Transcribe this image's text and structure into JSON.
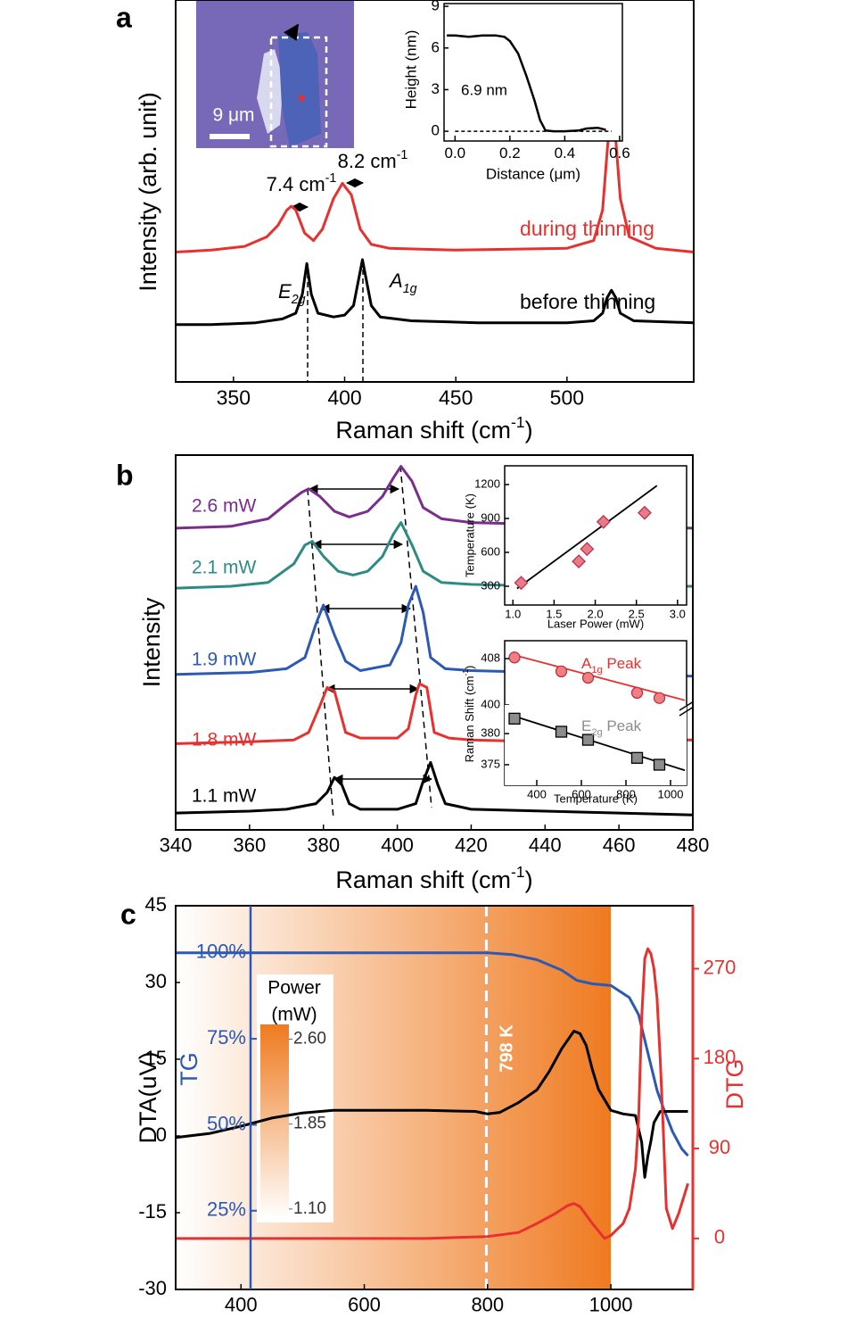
{
  "chart_data": [
    {
      "type": "line",
      "panel": "a",
      "xlabel": "Raman shift (cm-1)",
      "ylabel": "Intensity (arb. unit)",
      "xlim": [
        324,
        557
      ],
      "xticks": [
        350,
        400,
        450,
        500
      ],
      "ylim": [
        0,
        10
      ],
      "image_scalebar_label": "9 μm",
      "annotations": [
        "7.4 cm-1",
        "8.2 cm-1",
        "E2g",
        "A1g"
      ],
      "series": [
        {
          "name": "during thinning",
          "color": "#e8312f",
          "x": [
            324,
            340,
            355,
            365,
            370,
            374,
            376,
            378,
            382,
            386,
            390,
            395,
            399,
            403,
            407,
            412,
            420,
            450,
            500,
            512,
            516,
            518,
            520,
            522,
            524,
            528,
            540,
            557
          ],
          "values": [
            3.4,
            3.45,
            3.55,
            3.8,
            4.1,
            4.5,
            4.6,
            4.5,
            3.9,
            3.7,
            4.0,
            4.8,
            5.2,
            4.9,
            4.0,
            3.6,
            3.5,
            3.45,
            3.5,
            3.7,
            4.5,
            6.0,
            7.4,
            6.3,
            4.8,
            3.8,
            3.5,
            3.4
          ]
        },
        {
          "name": "before thinning",
          "color": "#000000",
          "x": [
            324,
            340,
            360,
            372,
            378,
            381,
            383,
            385,
            388,
            395,
            400,
            404,
            406,
            408,
            410,
            412,
            416,
            430,
            460,
            500,
            512,
            516,
            518,
            520,
            522,
            524,
            530,
            557
          ],
          "values": [
            1.5,
            1.5,
            1.55,
            1.65,
            1.8,
            2.3,
            3.1,
            2.3,
            1.8,
            1.7,
            1.75,
            2.0,
            2.6,
            3.2,
            2.6,
            2.0,
            1.7,
            1.6,
            1.55,
            1.55,
            1.6,
            1.8,
            2.2,
            2.4,
            2.2,
            1.8,
            1.6,
            1.55
          ]
        }
      ]
    },
    {
      "type": "line",
      "xlabel": "Distance (μm)",
      "ylabel": "Height (nm)",
      "xlim": [
        -0.04,
        0.61
      ],
      "xticks": [
        {
          "value": 0,
          "label": "0.0"
        },
        {
          "value": 0.2,
          "label": "0.2"
        },
        {
          "value": 0.4,
          "label": "0.4"
        },
        {
          "value": 0.6,
          "label": "0.6"
        }
      ],
      "ylim": [
        -0.7,
        9.2
      ],
      "yticks": [
        0,
        3,
        6,
        9
      ],
      "annotations": [
        "6.9 nm"
      ],
      "series": [
        {
          "color": "#000000",
          "x": [
            -0.03,
            0,
            0.05,
            0.1,
            0.15,
            0.18,
            0.2,
            0.23,
            0.26,
            0.29,
            0.31,
            0.33,
            0.36,
            0.4,
            0.45,
            0.48,
            0.52,
            0.55
          ],
          "values": [
            6.9,
            6.9,
            6.8,
            6.9,
            6.9,
            6.8,
            6.5,
            5.6,
            4.0,
            2.2,
            0.8,
            0.05,
            0,
            0,
            0.05,
            0.2,
            0.25,
            0.1
          ]
        }
      ]
    },
    {
      "type": "line",
      "panel": "b",
      "xlabel": "Raman shift (cm-1)",
      "ylabel": "Intensity",
      "xlim": [
        340,
        480
      ],
      "xticks": [
        340,
        360,
        380,
        400,
        420,
        440,
        460,
        480
      ],
      "ylim": [
        0,
        10
      ],
      "series": [
        {
          "name": "1.1 mW",
          "color": "#000000",
          "x": [
            340,
            360,
            370,
            378,
            381,
            383,
            385,
            387,
            390,
            400,
            405,
            407,
            409,
            411,
            413,
            420,
            440,
            460,
            480
          ],
          "values": [
            0.45,
            0.5,
            0.55,
            0.7,
            1.0,
            1.4,
            1.2,
            0.7,
            0.55,
            0.55,
            0.7,
            1.3,
            1.8,
            1.2,
            0.7,
            0.55,
            0.5,
            0.45,
            0.4
          ]
        },
        {
          "name": "1.8 mW",
          "color": "#e8312f",
          "x": [
            340,
            360,
            372,
            376,
            379,
            381,
            383,
            386,
            390,
            400,
            403,
            405,
            406,
            408,
            410,
            414,
            420,
            440,
            460,
            480
          ],
          "values": [
            2.3,
            2.35,
            2.4,
            2.6,
            3.3,
            3.8,
            3.7,
            2.6,
            2.45,
            2.45,
            2.7,
            3.6,
            3.9,
            3.8,
            2.6,
            2.45,
            2.4,
            2.35,
            2.4,
            2.4
          ]
        },
        {
          "name": "1.9 mW",
          "color": "#2b59b5",
          "x": [
            340,
            360,
            370,
            375,
            378,
            380,
            383,
            386,
            390,
            398,
            401,
            403,
            405,
            407,
            409,
            413,
            420,
            440,
            460,
            480
          ],
          "values": [
            4.15,
            4.2,
            4.3,
            4.6,
            5.5,
            6.0,
            5.2,
            4.5,
            4.25,
            4.4,
            5.0,
            6.0,
            6.5,
            5.8,
            4.6,
            4.3,
            4.25,
            4.2,
            4.15,
            4.1
          ]
        },
        {
          "name": "2.1 mW",
          "color": "#2e8b84",
          "x": [
            340,
            355,
            365,
            372,
            375,
            377,
            380,
            384,
            388,
            392,
            396,
            399,
            401,
            404,
            407,
            412,
            420,
            440,
            460,
            480
          ],
          "values": [
            6.45,
            6.5,
            6.6,
            7.1,
            7.6,
            7.7,
            7.3,
            6.9,
            6.8,
            6.9,
            7.3,
            7.9,
            8.2,
            7.6,
            6.9,
            6.6,
            6.55,
            6.5,
            6.5,
            6.5
          ]
        },
        {
          "name": "2.6 mW",
          "color": "#7b2d8e",
          "x": [
            340,
            355,
            365,
            370,
            374,
            376,
            379,
            383,
            387,
            392,
            396,
            399,
            401,
            404,
            407,
            412,
            420,
            440,
            460,
            480
          ],
          "values": [
            8.05,
            8.1,
            8.3,
            8.7,
            9.0,
            9.1,
            8.9,
            8.5,
            8.35,
            8.5,
            8.9,
            9.4,
            9.7,
            9.3,
            8.6,
            8.3,
            8.2,
            8.15,
            8.1,
            8.05
          ]
        }
      ]
    },
    {
      "type": "scatter",
      "marker": "diamond",
      "xlabel": "Laser Power (mW)",
      "ylabel": "Temperature (K)",
      "xlim": [
        0.9,
        3.11
      ],
      "xticks": [
        {
          "value": 1,
          "label": "1.0"
        },
        {
          "value": 1.5,
          "label": "1.5"
        },
        {
          "value": 2,
          "label": "2.0"
        },
        {
          "value": 2.5,
          "label": "2.5"
        },
        {
          "value": 3,
          "label": "3.0"
        }
      ],
      "ylim": [
        134,
        1366
      ],
      "yticks": [
        300,
        600,
        900,
        1200
      ],
      "series": [
        {
          "color": "#e87a8a",
          "x": [
            1.1,
            1.8,
            1.9,
            2.1,
            2.6
          ],
          "values": [
            330,
            520,
            630,
            870,
            950
          ],
          "fit": {
            "x": [
              1.05,
              2.75
            ],
            "values": [
              280,
              1190
            ]
          }
        }
      ]
    },
    {
      "type": "scatter",
      "marker": "circle",
      "ylabel": "Raman Shift (cm-1)",
      "xlim": [
        256,
        1072
      ],
      "ylim": [
        400,
        411.1
      ],
      "yticks": [
        400,
        408
      ],
      "series": [
        {
          "name": "A1g Peak",
          "color": "#f08080",
          "x": [
            300,
            510,
            630,
            850,
            950
          ],
          "values": [
            408.2,
            405.8,
            404.7,
            402.1,
            401.2
          ],
          "fit": {
            "x": [
              280,
              1064
            ],
            "values": [
              408.8,
              400.8
            ]
          }
        }
      ]
    },
    {
      "type": "scatter",
      "marker": "square",
      "xlabel": "Temperature (K)",
      "xlim": [
        256,
        1072
      ],
      "xticks": [
        400,
        600,
        800,
        1000
      ],
      "ylim": [
        371.7,
        384.6
      ],
      "yticks": [
        375,
        380
      ],
      "series": [
        {
          "name": "E2g Peak",
          "color": "#8c8c8c",
          "x": [
            300,
            510,
            630,
            850,
            950
          ],
          "values": [
            382.4,
            380.3,
            379,
            376.1,
            375
          ],
          "fit": {
            "x": [
              290,
              1064
            ],
            "values": [
              382.9,
              374.1
            ]
          }
        }
      ]
    },
    {
      "type": "line",
      "panel": "c",
      "ylabel": "DTA(uV)",
      "y2label": "DTG",
      "tglabel": "TG",
      "xlim": [
        294,
        1133
      ],
      "xticks": [
        400,
        600,
        800,
        1000
      ],
      "ylim": [
        -30,
        45
      ],
      "yticks": [
        -30,
        -15,
        0,
        15,
        30,
        45
      ],
      "y2lim": [
        -51,
        333
      ],
      "y2ticks": [
        0,
        90,
        180,
        270
      ],
      "y2color": "#e8312f",
      "tglim": [
        2.1,
        113.7
      ],
      "tgticks": [
        {
          "value": 25,
          "label": "25%"
        },
        {
          "value": 50,
          "label": "50%"
        },
        {
          "value": 75,
          "label": "75%"
        },
        {
          "value": 100,
          "label": "100%"
        }
      ],
      "tgcolor": "#2b59b5",
      "marker_line": {
        "x": 798,
        "label": "798 K"
      },
      "colorbar": {
        "title": [
          "Power",
          "(mW)"
        ],
        "clim": [
          1.02,
          2.73
        ],
        "ticks": [
          {
            "value": 2.6,
            "label": "2.60"
          },
          {
            "value": 1.85,
            "label": "1.85"
          },
          {
            "value": 1.1,
            "label": "1.10"
          }
        ]
      },
      "series": [
        {
          "color": "#2b59b5",
          "axis": "tg",
          "x": [
            294,
            400,
            600,
            800,
            840,
            880,
            920,
            945,
            970,
            1000,
            1030,
            1045,
            1060,
            1075,
            1085,
            1100,
            1115,
            1125
          ],
          "values": [
            100,
            100,
            100,
            100,
            99.5,
            98,
            95,
            92,
            91,
            90.5,
            87,
            82,
            71,
            60,
            55,
            48,
            43,
            41
          ]
        },
        {
          "color": "#000000",
          "x": [
            294,
            350,
            400,
            450,
            500,
            550,
            600,
            700,
            780,
            800,
            820,
            850,
            880,
            900,
            920,
            940,
            950,
            960,
            970,
            980,
            1000,
            1020,
            1040,
            1050,
            1055,
            1060,
            1065,
            1070,
            1080,
            1100,
            1125
          ],
          "values": [
            -0.3,
            0.5,
            1.9,
            3.5,
            4.5,
            5,
            5,
            5,
            4.8,
            4.3,
            4.6,
            6.5,
            9,
            12.6,
            17,
            20.5,
            20,
            17.7,
            13,
            9.1,
            5,
            4.3,
            4,
            -1.2,
            -8.1,
            -4,
            -1,
            2.6,
            4.8,
            4.8,
            4.8
          ]
        },
        {
          "color": "#e8312f",
          "axis": "y2",
          "x": [
            294,
            500,
            700,
            800,
            850,
            880,
            910,
            930,
            940,
            950,
            970,
            990,
            1000,
            1020,
            1030,
            1040,
            1045,
            1050,
            1055,
            1060,
            1065,
            1070,
            1075,
            1080,
            1085,
            1090,
            1100,
            1110,
            1125
          ],
          "values": [
            0,
            0,
            0,
            2,
            6,
            15,
            25,
            33,
            35,
            32,
            15,
            0,
            3,
            15,
            30,
            70,
            120,
            220,
            280,
            290,
            285,
            270,
            240,
            180,
            110,
            30,
            10,
            25,
            55
          ]
        }
      ]
    }
  ]
}
